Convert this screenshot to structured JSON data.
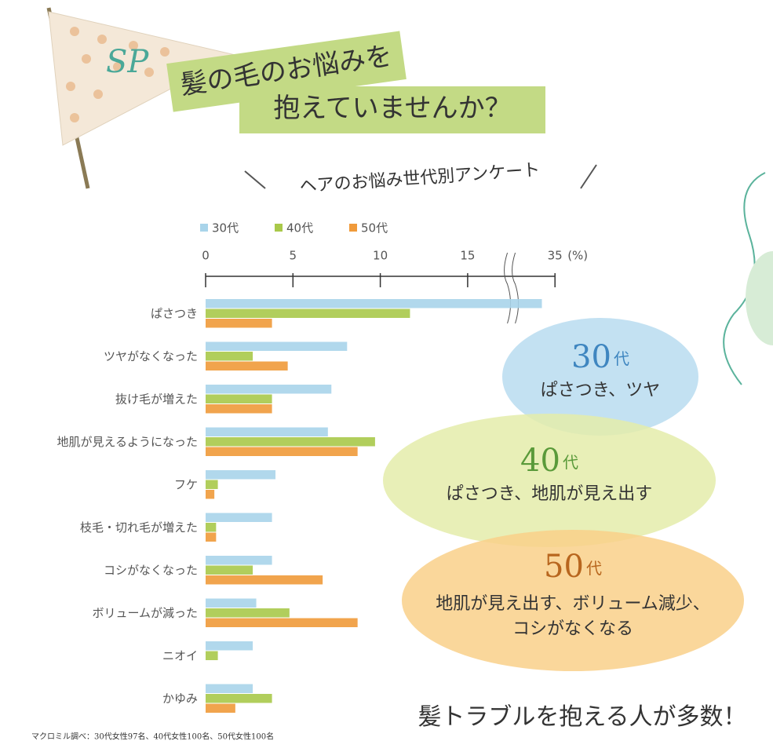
{
  "page": {
    "flag": "SP",
    "title_lines": [
      "髪の毛のお悩みを",
      "抱えていませんか？"
    ],
    "survey_title": "ヘアのお悩み世代別アンケート",
    "callouts": [
      {
        "age": "30",
        "unit": "代",
        "lines": [
          "ぱさつき、ツヤ"
        ],
        "color": "#b9dcf0"
      },
      {
        "age": "40",
        "unit": "代",
        "lines": [
          "ぱさつき、地肌が見え出す"
        ],
        "color": "#e4ecaa"
      },
      {
        "age": "50",
        "unit": "代",
        "lines": [
          "地肌が見え出す、ボリューム減少、",
          "コシがなくなる"
        ],
        "color": "#f9d08a"
      }
    ],
    "conclusion": "髪トラブルを抱える人が多数！",
    "footnote": "マクロミル調べ：30代女性97名、40代女性100名、50代女性100名"
  },
  "chart_data": {
    "type": "bar",
    "orientation": "horizontal",
    "x_unit": "(%)",
    "categories": [
      "ぱさつき",
      "ツヤがなくなった",
      "抜け毛が増えた",
      "地肌が見えるようになった",
      "フケ",
      "枝毛・切れ毛が増えた",
      "コシがなくなった",
      "ボリュームが減った",
      "ニオイ",
      "かゆみ"
    ],
    "series": [
      {
        "name": "30代",
        "color": "#a9d4ea",
        "values": [
          32,
          8.1,
          7.2,
          7,
          4,
          3.8,
          3.8,
          2.9,
          2.7,
          2.7
        ]
      },
      {
        "name": "40代",
        "color": "#a9c94a",
        "values": [
          11.7,
          2.7,
          3.8,
          9.7,
          0.7,
          0.6,
          2.7,
          4.8,
          0.7,
          3.8
        ]
      },
      {
        "name": "50代",
        "color": "#f09a3a",
        "values": [
          3.8,
          4.7,
          3.8,
          8.7,
          0.5,
          0.6,
          6.7,
          8.7,
          0,
          1.7
        ]
      }
    ],
    "xlim": [
      0,
      35
    ],
    "xticks": [
      0,
      5,
      10,
      15,
      35
    ],
    "axis_break": true
  }
}
